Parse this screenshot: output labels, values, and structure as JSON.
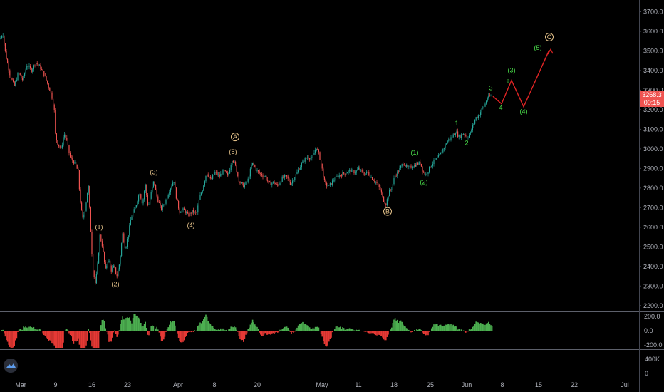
{
  "chart_data": {
    "type": "candlestick",
    "price_axis": {
      "ticks": [
        "3700.0",
        "3600.0",
        "3500.0",
        "3400.0",
        "3300.0",
        "3200.0",
        "3100.0",
        "3000.0",
        "2900.0",
        "2800.0",
        "2700.0",
        "2600.0",
        "2500.0",
        "2400.0",
        "2300.0",
        "2200.0"
      ],
      "ylim": [
        2170,
        3760
      ],
      "last_price": "3268.3",
      "countdown": "00:15"
    },
    "time_axis": {
      "ticks": [
        "Mar",
        "9",
        "16",
        "23",
        "Apr",
        "8",
        "20",
        "May",
        "11",
        "18",
        "25",
        "Jun",
        "8",
        "15",
        "22",
        "Jul"
      ]
    },
    "price_keypoints": [
      [
        0,
        3560
      ],
      [
        4,
        3590
      ],
      [
        8,
        3480
      ],
      [
        14,
        3380
      ],
      [
        20,
        3320
      ],
      [
        26,
        3390
      ],
      [
        32,
        3350
      ],
      [
        38,
        3430
      ],
      [
        44,
        3400
      ],
      [
        50,
        3440
      ],
      [
        56,
        3420
      ],
      [
        62,
        3380
      ],
      [
        68,
        3320
      ],
      [
        72,
        3280
      ],
      [
        76,
        3210
      ],
      [
        78,
        3060
      ],
      [
        82,
        3020
      ],
      [
        86,
        3000
      ],
      [
        90,
        3080
      ],
      [
        94,
        3040
      ],
      [
        98,
        2960
      ],
      [
        102,
        2940
      ],
      [
        106,
        2920
      ],
      [
        110,
        2880
      ],
      [
        112,
        2760
      ],
      [
        116,
        2640
      ],
      [
        120,
        2700
      ],
      [
        124,
        2820
      ],
      [
        128,
        2540
      ],
      [
        130,
        2400
      ],
      [
        134,
        2310
      ],
      [
        138,
        2440
      ],
      [
        140,
        2560
      ],
      [
        144,
        2500
      ],
      [
        148,
        2380
      ],
      [
        152,
        2440
      ],
      [
        156,
        2380
      ],
      [
        160,
        2400
      ],
      [
        164,
        2350
      ],
      [
        168,
        2420
      ],
      [
        172,
        2570
      ],
      [
        176,
        2490
      ],
      [
        180,
        2560
      ],
      [
        184,
        2650
      ],
      [
        190,
        2700
      ],
      [
        196,
        2780
      ],
      [
        200,
        2720
      ],
      [
        204,
        2820
      ],
      [
        208,
        2700
      ],
      [
        212,
        2770
      ],
      [
        216,
        2840
      ],
      [
        220,
        2760
      ],
      [
        226,
        2690
      ],
      [
        232,
        2730
      ],
      [
        238,
        2790
      ],
      [
        244,
        2840
      ],
      [
        248,
        2740
      ],
      [
        252,
        2680
      ],
      [
        258,
        2690
      ],
      [
        264,
        2660
      ],
      [
        270,
        2680
      ],
      [
        276,
        2670
      ],
      [
        280,
        2750
      ],
      [
        284,
        2790
      ],
      [
        290,
        2880
      ],
      [
        296,
        2840
      ],
      [
        302,
        2880
      ],
      [
        308,
        2860
      ],
      [
        314,
        2890
      ],
      [
        320,
        2860
      ],
      [
        326,
        2950
      ],
      [
        330,
        2920
      ],
      [
        336,
        2830
      ],
      [
        342,
        2810
      ],
      [
        348,
        2840
      ],
      [
        354,
        2930
      ],
      [
        360,
        2890
      ],
      [
        366,
        2870
      ],
      [
        372,
        2860
      ],
      [
        378,
        2820
      ],
      [
        384,
        2830
      ],
      [
        390,
        2810
      ],
      [
        396,
        2850
      ],
      [
        402,
        2860
      ],
      [
        408,
        2820
      ],
      [
        414,
        2860
      ],
      [
        420,
        2900
      ],
      [
        426,
        2940
      ],
      [
        432,
        2960
      ],
      [
        438,
        2950
      ],
      [
        444,
        3010
      ],
      [
        448,
        2970
      ],
      [
        452,
        2900
      ],
      [
        456,
        2820
      ],
      [
        462,
        2810
      ],
      [
        468,
        2840
      ],
      [
        474,
        2860
      ],
      [
        480,
        2870
      ],
      [
        486,
        2880
      ],
      [
        492,
        2890
      ],
      [
        498,
        2880
      ],
      [
        504,
        2900
      ],
      [
        510,
        2870
      ],
      [
        516,
        2880
      ],
      [
        522,
        2850
      ],
      [
        528,
        2830
      ],
      [
        534,
        2790
      ],
      [
        538,
        2740
      ],
      [
        542,
        2720
      ],
      [
        546,
        2780
      ],
      [
        550,
        2800
      ],
      [
        554,
        2860
      ],
      [
        560,
        2890
      ],
      [
        566,
        2930
      ],
      [
        572,
        2900
      ],
      [
        578,
        2910
      ],
      [
        584,
        2920
      ],
      [
        590,
        2930
      ],
      [
        594,
        2880
      ],
      [
        598,
        2870
      ],
      [
        604,
        2910
      ],
      [
        610,
        2940
      ],
      [
        616,
        2960
      ],
      [
        622,
        3000
      ],
      [
        628,
        3040
      ],
      [
        634,
        3060
      ],
      [
        640,
        3090
      ],
      [
        644,
        3060
      ],
      [
        650,
        3080
      ],
      [
        656,
        3060
      ],
      [
        660,
        3080
      ],
      [
        664,
        3120
      ],
      [
        668,
        3160
      ],
      [
        672,
        3170
      ],
      [
        676,
        3200
      ],
      [
        680,
        3220
      ],
      [
        684,
        3260
      ],
      [
        688,
        3270
      ],
      [
        692,
        3268
      ]
    ],
    "wave_labels": [
      {
        "text": "(1)",
        "x": 139,
        "p": 2590,
        "color": "#e6c38a"
      },
      {
        "text": "(2)",
        "x": 162,
        "p": 2300,
        "color": "#e6c38a"
      },
      {
        "text": "(3)",
        "x": 216,
        "p": 2870,
        "color": "#e6c38a"
      },
      {
        "text": "(4)",
        "x": 268,
        "p": 2600,
        "color": "#e6c38a"
      },
      {
        "text": "(5)",
        "x": 327,
        "p": 2975,
        "color": "#e6c38a"
      },
      {
        "text": "A",
        "x": 330,
        "p": 3050,
        "color": "#e6c38a",
        "circle": true
      },
      {
        "text": "B",
        "x": 544,
        "p": 2670,
        "color": "#e6c38a",
        "circle": true
      },
      {
        "text": "(1)",
        "x": 582,
        "p": 2970,
        "color": "#4ade4a"
      },
      {
        "text": "(2)",
        "x": 595,
        "p": 2820,
        "color": "#4ade4a"
      },
      {
        "text": "1",
        "x": 641,
        "p": 3120,
        "color": "#4ade4a"
      },
      {
        "text": "2",
        "x": 655,
        "p": 3020,
        "color": "#4ade4a"
      },
      {
        "text": "3",
        "x": 689,
        "p": 3300,
        "color": "#4ade4a"
      },
      {
        "text": "4",
        "x": 703,
        "p": 3200,
        "color": "#4ade4a"
      },
      {
        "text": "5",
        "x": 713,
        "p": 3340,
        "color": "#4ade4a"
      },
      {
        "text": "(3)",
        "x": 718,
        "p": 3390,
        "color": "#4ade4a"
      },
      {
        "text": "(4)",
        "x": 735,
        "p": 3180,
        "color": "#4ade4a"
      },
      {
        "text": "(5)",
        "x": 755,
        "p": 3505,
        "color": "#4ade4a"
      },
      {
        "text": "C",
        "x": 771,
        "p": 3560,
        "color": "#e6c38a",
        "circle": true
      }
    ],
    "projection": {
      "color": "#e02424",
      "points": [
        [
          692,
          3268
        ],
        [
          704,
          3230
        ],
        [
          718,
          3350
        ],
        [
          735,
          3215
        ],
        [
          771,
          3505
        ]
      ]
    },
    "oscillator": {
      "ticks": [
        "200.0",
        "0.0",
        "-200.0"
      ],
      "ylim": [
        -260,
        260
      ]
    },
    "volume": {
      "ticks": [
        "400K",
        "0"
      ]
    },
    "colors": {
      "up": "#26a69a",
      "down": "#ef5350",
      "osc_up": "#4caf50",
      "osc_down": "#e53935",
      "grid": "#1c1c1c",
      "axis_line": "#434651"
    }
  }
}
